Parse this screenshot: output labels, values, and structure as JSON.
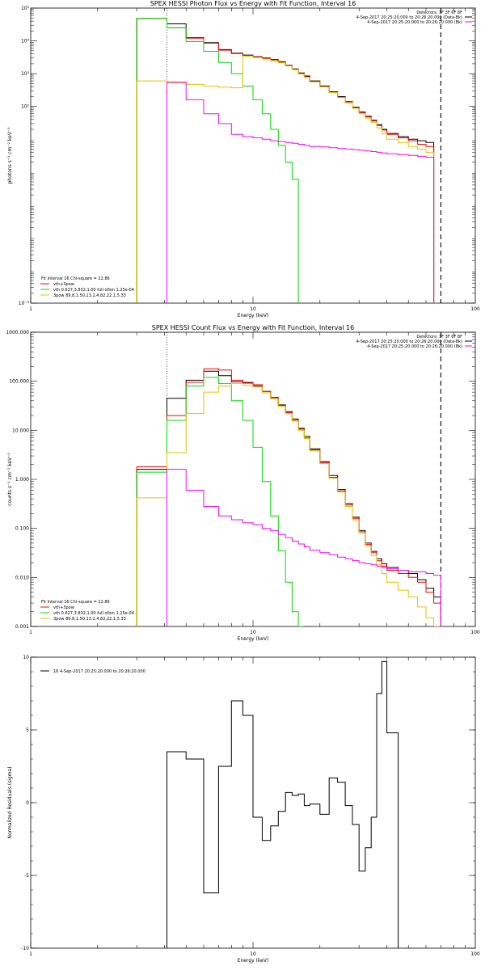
{
  "colors": {
    "data": "#000000",
    "vth3pow": "#ff0000",
    "vth": "#00dd00",
    "pow": "#e6c200",
    "bk": "#ff00ff"
  },
  "chart_data": [
    {
      "type": "line",
      "title": "SPEX HESSI Photon Flux vs Energy with Fit Function, Interval 16",
      "xlabel": "Energy (keV)",
      "ylabel": "photons s⁻¹ cm⁻² keV⁻¹",
      "x_scale": "log",
      "y_scale": "log",
      "xlim": [
        1,
        100
      ],
      "ylim": [
        0.0001,
        100000
      ],
      "xticks": [
        "1",
        "10",
        "100"
      ],
      "yticks": [
        "10⁻⁴",
        "10²",
        "10³",
        "10⁴",
        "10⁵"
      ],
      "yticks_values": [
        0.0001,
        100,
        1000,
        10000,
        100000
      ],
      "header": [
        {
          "text": "Detectors: 1F 3F 6F 8F",
          "color": "#000000"
        },
        {
          "text": "4-Sep-2017 20:25:20.000 to 20:26:20.000 (Data-Bk)",
          "color": "#000000"
        },
        {
          "text": "4-Sep-2017 20:25:20.000 to 20:26:20.000 (Bk)",
          "color": "#ff00ff"
        }
      ],
      "legend": [
        {
          "text": "Fit Interval 16   Chi-square = 22.86",
          "color": null
        },
        {
          "text": "vth+3pow",
          "color": "#ff0000"
        },
        {
          "text": "vth 0.627,3.832,1.00  full ofion 1.25e-04",
          "color": "#00dd00"
        },
        {
          "text": "3pow 89.8,1.50,13.2,4.82,22.1,5.33",
          "color": "#e6c200"
        }
      ],
      "vlines": [
        {
          "x": 4.1,
          "style": "dotted"
        },
        {
          "x": 70,
          "style": "dashed"
        }
      ],
      "edges": [
        3.0,
        4.1,
        5.0,
        6.0,
        7.0,
        8.0,
        9.0,
        10.0,
        11.0,
        12.0,
        13.0,
        14.0,
        15.0,
        16.0,
        17.0,
        18.0,
        20.0,
        22.0,
        24.0,
        26.0,
        28.0,
        30.0,
        32.0,
        34.0,
        36.0,
        38.0,
        40.0,
        45.0,
        50.0,
        55.0,
        60.0,
        65.0
      ],
      "series": [
        {
          "name": "Data-Bk",
          "color": "#000000",
          "values": [
            48000,
            33000,
            12500,
            8800,
            5400,
            4200,
            3700,
            3300,
            3000,
            2700,
            2300,
            1800,
            1400,
            1050,
            850,
            600,
            420,
            280,
            200,
            140,
            95,
            68,
            50,
            38,
            28,
            20,
            15,
            12,
            10,
            9,
            8
          ]
        },
        {
          "name": "vth+3pow",
          "color": "#ff0000",
          "values": [
            48000,
            25000,
            12000,
            8500,
            5200,
            4100,
            3600,
            3200,
            2900,
            2600,
            2200,
            1750,
            1350,
            1000,
            800,
            570,
            400,
            270,
            190,
            135,
            90,
            65,
            48,
            36,
            26,
            19,
            14,
            11,
            9,
            7,
            6
          ]
        },
        {
          "name": "vth",
          "color": "#00dd00",
          "values": [
            48000,
            25000,
            9500,
            4800,
            2200,
            1000,
            420,
            160,
            60,
            20,
            6.5,
            2.0,
            0.6
          ]
        },
        {
          "name": "3pow",
          "color": "#e6c200",
          "values": [
            600,
            520,
            470,
            420,
            390,
            370,
            3400,
            3100,
            2800,
            2500,
            2150,
            1720,
            1320,
            980,
            780,
            560,
            395,
            265,
            185,
            130,
            88,
            60,
            44,
            32,
            22,
            15,
            10,
            8,
            6,
            5,
            4
          ]
        },
        {
          "name": "Bk",
          "color": "#ff00ff",
          "values": [
            null,
            550,
            160,
            60,
            30,
            14,
            12,
            11,
            10,
            9,
            8.5,
            8,
            7.5,
            7,
            6.5,
            6,
            5.8,
            5.5,
            5.2,
            5,
            4.8,
            4.6,
            4.4,
            4.2,
            4,
            3.8,
            3.6,
            3.4,
            3.2,
            3,
            2.8
          ]
        }
      ]
    },
    {
      "type": "line",
      "title": "SPEX HESSI Count Flux vs Energy with Fit Function, Interval 16",
      "xlabel": "Energy (keV)",
      "ylabel": "counts s⁻¹ cm⁻² keV⁻¹",
      "x_scale": "log",
      "y_scale": "log",
      "xlim": [
        1,
        100
      ],
      "ylim": [
        0.001,
        1000
      ],
      "xticks": [
        "1",
        "10",
        "100"
      ],
      "yticks": [
        "0.001",
        "0.010",
        "0.100",
        "1.000",
        "10.000",
        "100.000",
        "1000.000"
      ],
      "yticks_values": [
        0.001,
        0.01,
        0.1,
        1,
        10,
        100,
        1000
      ],
      "header": [
        {
          "text": "Detectors: 1F 3F 6F 8F",
          "color": "#000000"
        },
        {
          "text": "4-Sep-2017 20:25:20.000 to 20:26:20.000 (Data-Bk)",
          "color": "#000000"
        },
        {
          "text": "4-Sep-2017 20:25:20.000 to 20:26:20.000 (Bk)",
          "color": "#ff00ff"
        }
      ],
      "legend": [
        {
          "text": "Fit Interval 16   Chi-square = 22.86",
          "color": null
        },
        {
          "text": "vth+3pow",
          "color": "#ff0000"
        },
        {
          "text": "vth 0.627,3.832,1.00  full ofion 1.25e-04",
          "color": "#00dd00"
        },
        {
          "text": "3pow 89.8,1.50,13.2,4.82,22.1,5.33",
          "color": "#e6c200"
        }
      ],
      "vlines": [
        {
          "x": 4.1,
          "style": "dotted"
        },
        {
          "x": 70,
          "style": "dashed"
        }
      ],
      "edges": [
        3.0,
        4.1,
        5.0,
        6.0,
        7.0,
        8.0,
        9.0,
        10.0,
        11.0,
        12.0,
        13.0,
        14.0,
        15.0,
        16.0,
        17.0,
        18.0,
        20.0,
        22.0,
        24.0,
        26.0,
        28.0,
        30.0,
        32.0,
        34.0,
        36.0,
        38.0,
        40.0,
        45.0,
        50.0,
        55.0,
        60.0,
        65.0,
        70.0
      ],
      "series": [
        {
          "name": "Data-Bk",
          "color": "#000000",
          "values": [
            1.6,
            45,
            105,
            160,
            130,
            98,
            92,
            80,
            62,
            47,
            33,
            24,
            17,
            11,
            7.5,
            4.2,
            2.3,
            1.2,
            0.62,
            0.32,
            0.17,
            0.09,
            0.05,
            0.034,
            0.024,
            0.019,
            0.016,
            0.014,
            0.012,
            0.009,
            0.006,
            0.004
          ]
        },
        {
          "name": "vth+3pow",
          "color": "#ff0000",
          "values": [
            1.8,
            20,
            95,
            180,
            170,
            105,
            95,
            85,
            62,
            46,
            32,
            23,
            16,
            10.5,
            7,
            4,
            2.2,
            1.1,
            0.58,
            0.3,
            0.16,
            0.085,
            0.047,
            0.032,
            0.022,
            0.017,
            0.014,
            0.012,
            0.01,
            0.008,
            0.005,
            0.003
          ]
        },
        {
          "name": "vth",
          "color": "#00dd00",
          "values": [
            1.4,
            16,
            80,
            120,
            90,
            40,
            16,
            4.5,
            0.9,
            0.18,
            0.035,
            0.008,
            0.002,
            0.0005
          ]
        },
        {
          "name": "3pow",
          "color": "#e6c200",
          "values": [
            0.42,
            3.5,
            22,
            60,
            80,
            90,
            82,
            76,
            58,
            44,
            31,
            22,
            15.5,
            10,
            6.8,
            3.8,
            2.1,
            1.05,
            0.55,
            0.28,
            0.15,
            0.08,
            0.044,
            0.028,
            0.018,
            0.012,
            0.008,
            0.0055,
            0.004,
            0.0025,
            0.0015,
            0.0009
          ]
        },
        {
          "name": "Bk",
          "color": "#ff00ff",
          "values": [
            null,
            1.6,
            0.6,
            0.28,
            0.18,
            0.15,
            0.13,
            0.12,
            0.1,
            0.09,
            0.075,
            0.065,
            0.055,
            0.048,
            0.042,
            0.036,
            0.032,
            0.029,
            0.026,
            0.024,
            0.022,
            0.02,
            0.019,
            0.018,
            0.017,
            0.016,
            0.015,
            0.014,
            0.013,
            0.013,
            0.012,
            0.011
          ]
        }
      ]
    },
    {
      "type": "line",
      "title": "",
      "xlabel": "Energy (keV)",
      "ylabel": "Normalized Residuals (sigma)",
      "x_scale": "log",
      "y_scale": "linear",
      "xlim": [
        1,
        100
      ],
      "ylim": [
        -10,
        10
      ],
      "xticks": [
        "1",
        "10",
        "100"
      ],
      "yticks": [
        "-10",
        "-5",
        "0",
        "5",
        "10"
      ],
      "yticks_values": [
        -10,
        -5,
        0,
        5,
        10
      ],
      "header": [],
      "legend": [
        {
          "text": "16  4-Sep-2017 20:25:20.000 to 20:26:20.000",
          "color": "#000000"
        }
      ],
      "vlines": [],
      "edges": [
        4.1,
        5.0,
        6.0,
        7.0,
        8.0,
        9.0,
        10.0,
        11.0,
        12.0,
        13.0,
        14.0,
        15.0,
        16.0,
        17.0,
        18.0,
        20.0,
        22.0,
        24.0,
        26.0,
        28.0,
        30.0,
        32.0,
        34.0,
        36.0,
        38.0,
        40.0,
        45.0,
        50.0,
        55.0,
        60.0,
        65.0,
        70.0
      ],
      "series": [
        {
          "name": "16",
          "color": "#000000",
          "values": [
            3.5,
            3.0,
            -6.2,
            2.5,
            7.0,
            6.0,
            -1.0,
            -2.6,
            -1.6,
            -0.6,
            0.7,
            0.5,
            0.6,
            -0.2,
            -0.1,
            -0.8,
            1.7,
            1.4,
            -0.2,
            -1.5,
            -4.7,
            -3.1,
            -1.0,
            7.5,
            9.7,
            4.8,
            null,
            null,
            null,
            null,
            null
          ]
        }
      ],
      "step_closed": true
    }
  ]
}
